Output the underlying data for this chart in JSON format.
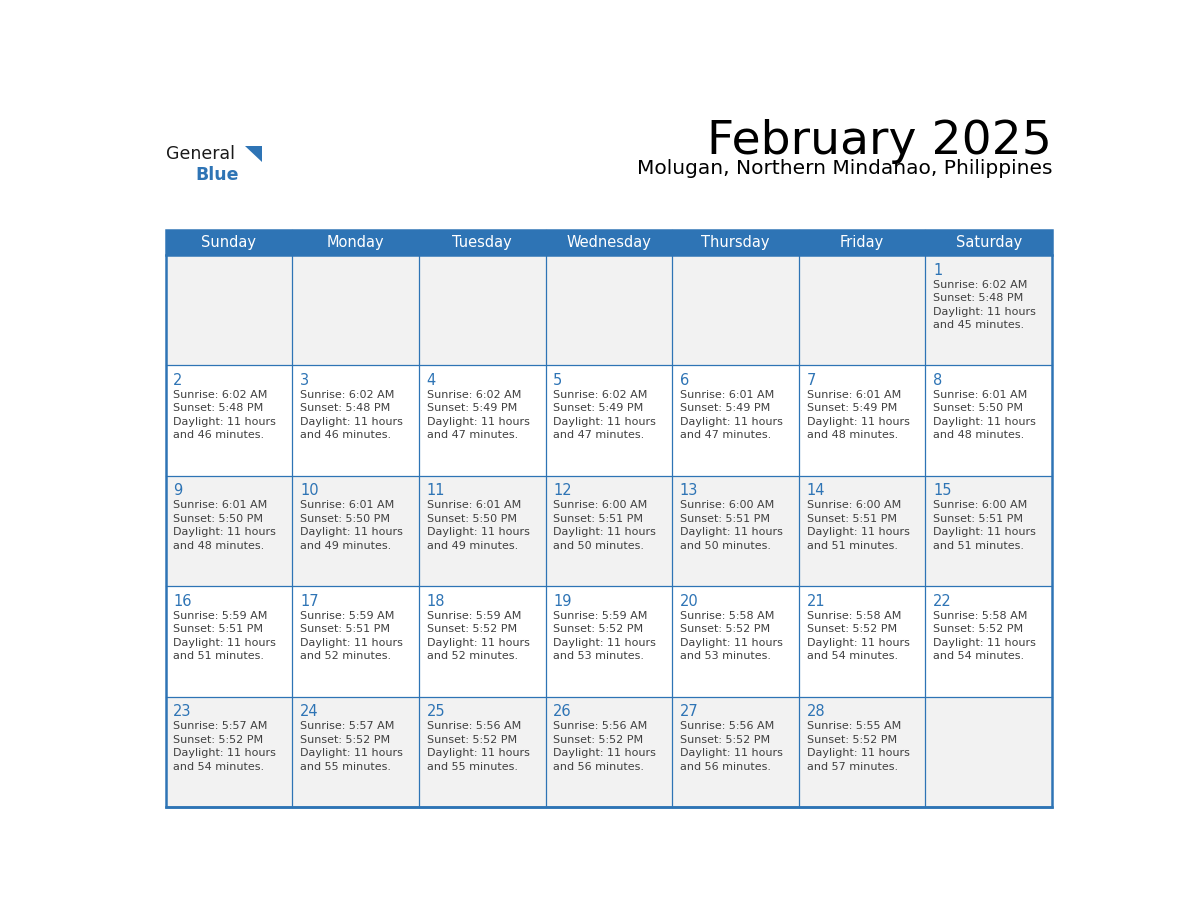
{
  "title": "February 2025",
  "subtitle": "Molugan, Northern Mindanao, Philippines",
  "header_bg": "#2E74B5",
  "header_text_color": "#FFFFFF",
  "cell_bg_odd": "#F2F2F2",
  "cell_bg_even": "#FFFFFF",
  "border_color": "#2E74B5",
  "text_color": "#404040",
  "day_number_color": "#2E74B5",
  "days_of_week": [
    "Sunday",
    "Monday",
    "Tuesday",
    "Wednesday",
    "Thursday",
    "Friday",
    "Saturday"
  ],
  "weeks": [
    [
      {
        "day": "",
        "sunrise": "",
        "sunset": "",
        "daylight_h": "",
        "daylight_m": ""
      },
      {
        "day": "",
        "sunrise": "",
        "sunset": "",
        "daylight_h": "",
        "daylight_m": ""
      },
      {
        "day": "",
        "sunrise": "",
        "sunset": "",
        "daylight_h": "",
        "daylight_m": ""
      },
      {
        "day": "",
        "sunrise": "",
        "sunset": "",
        "daylight_h": "",
        "daylight_m": ""
      },
      {
        "day": "",
        "sunrise": "",
        "sunset": "",
        "daylight_h": "",
        "daylight_m": ""
      },
      {
        "day": "",
        "sunrise": "",
        "sunset": "",
        "daylight_h": "",
        "daylight_m": ""
      },
      {
        "day": "1",
        "sunrise": "6:02 AM",
        "sunset": "5:48 PM",
        "daylight_h": "11 hours",
        "daylight_m": "and 45 minutes."
      }
    ],
    [
      {
        "day": "2",
        "sunrise": "6:02 AM",
        "sunset": "5:48 PM",
        "daylight_h": "11 hours",
        "daylight_m": "and 46 minutes."
      },
      {
        "day": "3",
        "sunrise": "6:02 AM",
        "sunset": "5:48 PM",
        "daylight_h": "11 hours",
        "daylight_m": "and 46 minutes."
      },
      {
        "day": "4",
        "sunrise": "6:02 AM",
        "sunset": "5:49 PM",
        "daylight_h": "11 hours",
        "daylight_m": "and 47 minutes."
      },
      {
        "day": "5",
        "sunrise": "6:02 AM",
        "sunset": "5:49 PM",
        "daylight_h": "11 hours",
        "daylight_m": "and 47 minutes."
      },
      {
        "day": "6",
        "sunrise": "6:01 AM",
        "sunset": "5:49 PM",
        "daylight_h": "11 hours",
        "daylight_m": "and 47 minutes."
      },
      {
        "day": "7",
        "sunrise": "6:01 AM",
        "sunset": "5:49 PM",
        "daylight_h": "11 hours",
        "daylight_m": "and 48 minutes."
      },
      {
        "day": "8",
        "sunrise": "6:01 AM",
        "sunset": "5:50 PM",
        "daylight_h": "11 hours",
        "daylight_m": "and 48 minutes."
      }
    ],
    [
      {
        "day": "9",
        "sunrise": "6:01 AM",
        "sunset": "5:50 PM",
        "daylight_h": "11 hours",
        "daylight_m": "and 48 minutes."
      },
      {
        "day": "10",
        "sunrise": "6:01 AM",
        "sunset": "5:50 PM",
        "daylight_h": "11 hours",
        "daylight_m": "and 49 minutes."
      },
      {
        "day": "11",
        "sunrise": "6:01 AM",
        "sunset": "5:50 PM",
        "daylight_h": "11 hours",
        "daylight_m": "and 49 minutes."
      },
      {
        "day": "12",
        "sunrise": "6:00 AM",
        "sunset": "5:51 PM",
        "daylight_h": "11 hours",
        "daylight_m": "and 50 minutes."
      },
      {
        "day": "13",
        "sunrise": "6:00 AM",
        "sunset": "5:51 PM",
        "daylight_h": "11 hours",
        "daylight_m": "and 50 minutes."
      },
      {
        "day": "14",
        "sunrise": "6:00 AM",
        "sunset": "5:51 PM",
        "daylight_h": "11 hours",
        "daylight_m": "and 51 minutes."
      },
      {
        "day": "15",
        "sunrise": "6:00 AM",
        "sunset": "5:51 PM",
        "daylight_h": "11 hours",
        "daylight_m": "and 51 minutes."
      }
    ],
    [
      {
        "day": "16",
        "sunrise": "5:59 AM",
        "sunset": "5:51 PM",
        "daylight_h": "11 hours",
        "daylight_m": "and 51 minutes."
      },
      {
        "day": "17",
        "sunrise": "5:59 AM",
        "sunset": "5:51 PM",
        "daylight_h": "11 hours",
        "daylight_m": "and 52 minutes."
      },
      {
        "day": "18",
        "sunrise": "5:59 AM",
        "sunset": "5:52 PM",
        "daylight_h": "11 hours",
        "daylight_m": "and 52 minutes."
      },
      {
        "day": "19",
        "sunrise": "5:59 AM",
        "sunset": "5:52 PM",
        "daylight_h": "11 hours",
        "daylight_m": "and 53 minutes."
      },
      {
        "day": "20",
        "sunrise": "5:58 AM",
        "sunset": "5:52 PM",
        "daylight_h": "11 hours",
        "daylight_m": "and 53 minutes."
      },
      {
        "day": "21",
        "sunrise": "5:58 AM",
        "sunset": "5:52 PM",
        "daylight_h": "11 hours",
        "daylight_m": "and 54 minutes."
      },
      {
        "day": "22",
        "sunrise": "5:58 AM",
        "sunset": "5:52 PM",
        "daylight_h": "11 hours",
        "daylight_m": "and 54 minutes."
      }
    ],
    [
      {
        "day": "23",
        "sunrise": "5:57 AM",
        "sunset": "5:52 PM",
        "daylight_h": "11 hours",
        "daylight_m": "and 54 minutes."
      },
      {
        "day": "24",
        "sunrise": "5:57 AM",
        "sunset": "5:52 PM",
        "daylight_h": "11 hours",
        "daylight_m": "and 55 minutes."
      },
      {
        "day": "25",
        "sunrise": "5:56 AM",
        "sunset": "5:52 PM",
        "daylight_h": "11 hours",
        "daylight_m": "and 55 minutes."
      },
      {
        "day": "26",
        "sunrise": "5:56 AM",
        "sunset": "5:52 PM",
        "daylight_h": "11 hours",
        "daylight_m": "and 56 minutes."
      },
      {
        "day": "27",
        "sunrise": "5:56 AM",
        "sunset": "5:52 PM",
        "daylight_h": "11 hours",
        "daylight_m": "and 56 minutes."
      },
      {
        "day": "28",
        "sunrise": "5:55 AM",
        "sunset": "5:52 PM",
        "daylight_h": "11 hours",
        "daylight_m": "and 57 minutes."
      },
      {
        "day": "",
        "sunrise": "",
        "sunset": "",
        "daylight_h": "",
        "daylight_m": ""
      }
    ]
  ],
  "logo_general_color": "#1a1a1a",
  "logo_blue_color": "#2E74B5",
  "fig_width": 11.88,
  "fig_height": 9.18,
  "dpi": 100
}
